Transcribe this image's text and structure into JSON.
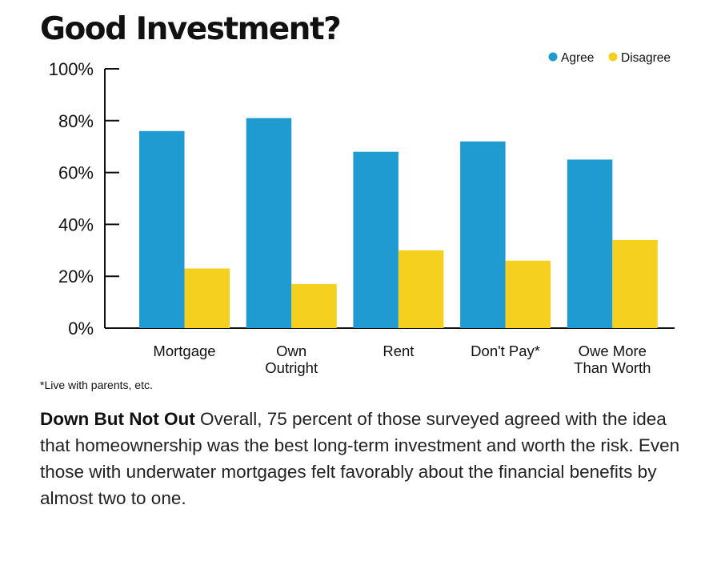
{
  "chart_data": {
    "type": "bar",
    "title": "Good Investment?",
    "categories": [
      [
        "Mortgage"
      ],
      [
        "Own",
        "Outright"
      ],
      [
        "Rent"
      ],
      [
        "Don't Pay*"
      ],
      [
        "Owe More",
        "Than Worth"
      ]
    ],
    "series": [
      {
        "name": "Agree",
        "color": "#1f9bd1",
        "values": [
          76,
          81,
          68,
          72,
          65
        ]
      },
      {
        "name": "Disagree",
        "color": "#f5d01e",
        "values": [
          23,
          17,
          30,
          26,
          34
        ]
      }
    ],
    "yticks": [
      "0%",
      "20%",
      "40%",
      "60%",
      "80%",
      "100%"
    ],
    "ylim": [
      0,
      100
    ],
    "xlabel": "",
    "ylabel": "",
    "legend": "top-right",
    "grid": false
  },
  "footnote": "*Live with parents, etc.",
  "caption": {
    "headline": "Down But Not Out",
    "body": " Overall, 75 percent of those surveyed agreed with the idea that homeownership was the best long-term investment and worth the risk. Even those with underwater mortgages felt favorably about the financial benefits by almost two to one."
  }
}
